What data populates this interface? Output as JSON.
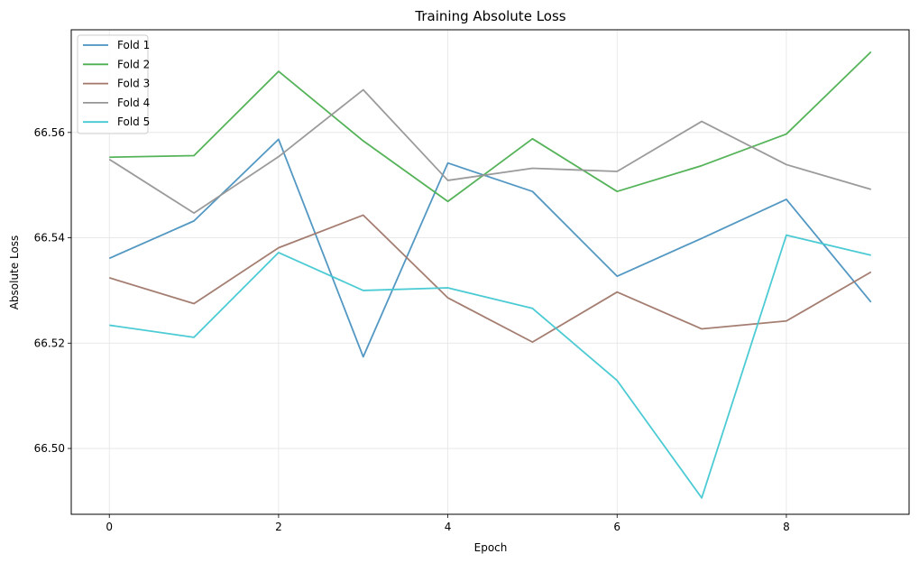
{
  "chart_data": {
    "type": "line",
    "title": "Training Absolute Loss",
    "xlabel": "Epoch",
    "ylabel": "Absolute Loss",
    "x": [
      0,
      1,
      2,
      3,
      4,
      5,
      6,
      7,
      8,
      9
    ],
    "xlim": [
      -0.45,
      9.45
    ],
    "ylim": [
      66.4875,
      66.5795
    ],
    "xticks": [
      0,
      2,
      4,
      6,
      8
    ],
    "yticks": [
      66.5,
      66.52,
      66.54,
      66.56
    ],
    "xtick_labels": [
      "0",
      "2",
      "4",
      "6",
      "8"
    ],
    "ytick_labels": [
      "66.50",
      "66.52",
      "66.54",
      "66.56"
    ],
    "grid": true,
    "legend_position": "upper-left",
    "series": [
      {
        "name": "Fold 1",
        "color": "#4a92c0",
        "values": [
          66.5361,
          66.5432,
          66.5587,
          66.5174,
          66.5542,
          66.5488,
          66.5327,
          66.5399,
          66.5473,
          66.5278
        ]
      },
      {
        "name": "Fold 2",
        "color": "#4caf50",
        "values": [
          66.5553,
          66.5556,
          66.5716,
          66.5584,
          66.5469,
          66.5588,
          66.5488,
          66.5537,
          66.5597,
          66.5753
        ]
      },
      {
        "name": "Fold 3",
        "color": "#a0776a",
        "values": [
          66.5324,
          66.5275,
          66.5381,
          66.5443,
          66.5286,
          66.5202,
          66.5297,
          66.5227,
          66.5242,
          66.5335
        ]
      },
      {
        "name": "Fold 4",
        "color": "#969696",
        "values": [
          66.5549,
          66.5447,
          66.5554,
          66.5681,
          66.5509,
          66.5532,
          66.5526,
          66.5621,
          66.5539,
          66.5492
        ]
      },
      {
        "name": "Fold 5",
        "color": "#42c8d2",
        "values": [
          66.5234,
          66.5211,
          66.5372,
          66.53,
          66.5305,
          66.5266,
          66.5129,
          66.4906,
          66.5405,
          66.5367
        ]
      }
    ]
  }
}
